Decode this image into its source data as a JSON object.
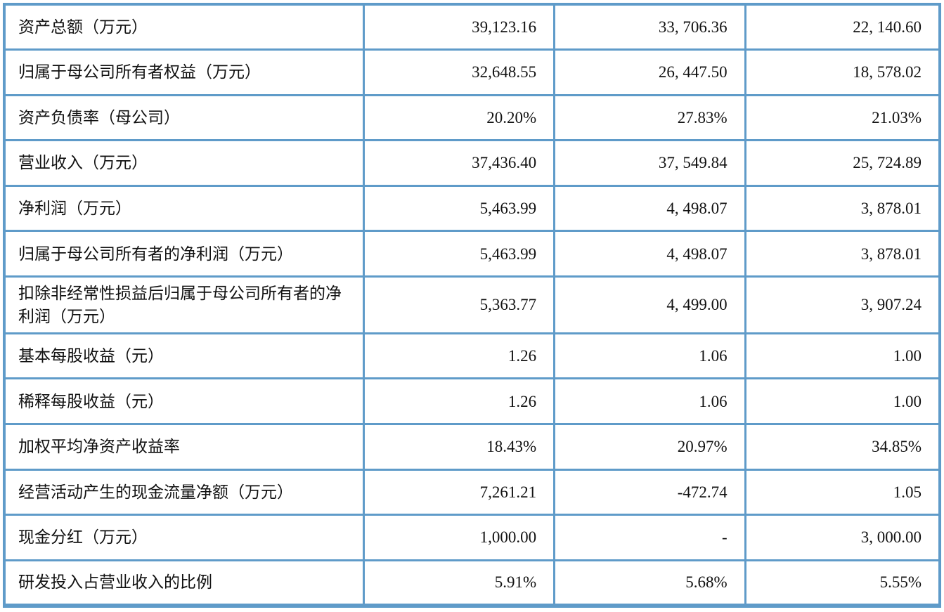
{
  "table": {
    "name": "key-financial-indicators",
    "border_color": "#5f9bc9",
    "text_color": "#111111",
    "columns": [
      "indicator",
      "period_1",
      "period_2",
      "period_3"
    ],
    "rows": [
      {
        "label": "资产总额（万元）",
        "values": [
          "39,123.16",
          "33, 706.36",
          "22, 140.60"
        ]
      },
      {
        "label": "归属于母公司所有者权益（万元）",
        "values": [
          "32,648.55",
          "26, 447.50",
          "18, 578.02"
        ]
      },
      {
        "label": "资产负债率（母公司）",
        "values": [
          "20.20%",
          "27.83%",
          "21.03%"
        ]
      },
      {
        "label": "营业收入（万元）",
        "values": [
          "37,436.40",
          "37, 549.84",
          "25, 724.89"
        ]
      },
      {
        "label": "净利润（万元）",
        "values": [
          "5,463.99",
          "4, 498.07",
          "3, 878.01"
        ]
      },
      {
        "label": "归属于母公司所有者的净利润（万元）",
        "values": [
          "5,463.99",
          "4, 498.07",
          "3, 878.01"
        ]
      },
      {
        "label": "扣除非经常性损益后归属于母公司所有者的净利润（万元）",
        "values": [
          "5,363.77",
          "4, 499.00",
          "3, 907.24"
        ]
      },
      {
        "label": "基本每股收益（元）",
        "values": [
          "1.26",
          "1.06",
          "1.00"
        ]
      },
      {
        "label": "稀释每股收益（元）",
        "values": [
          "1.26",
          "1.06",
          "1.00"
        ]
      },
      {
        "label": "加权平均净资产收益率",
        "values": [
          "18.43%",
          "20.97%",
          "34.85%"
        ]
      },
      {
        "label": "经营活动产生的现金流量净额（万元）",
        "values": [
          "7,261.21",
          "-472.74",
          "1.05"
        ]
      },
      {
        "label": "现金分红（万元）",
        "values": [
          "1,000.00",
          "-",
          "3, 000.00"
        ]
      },
      {
        "label": "研发投入占营业收入的比例",
        "values": [
          "5.91%",
          "5.68%",
          "5.55%"
        ]
      }
    ]
  }
}
